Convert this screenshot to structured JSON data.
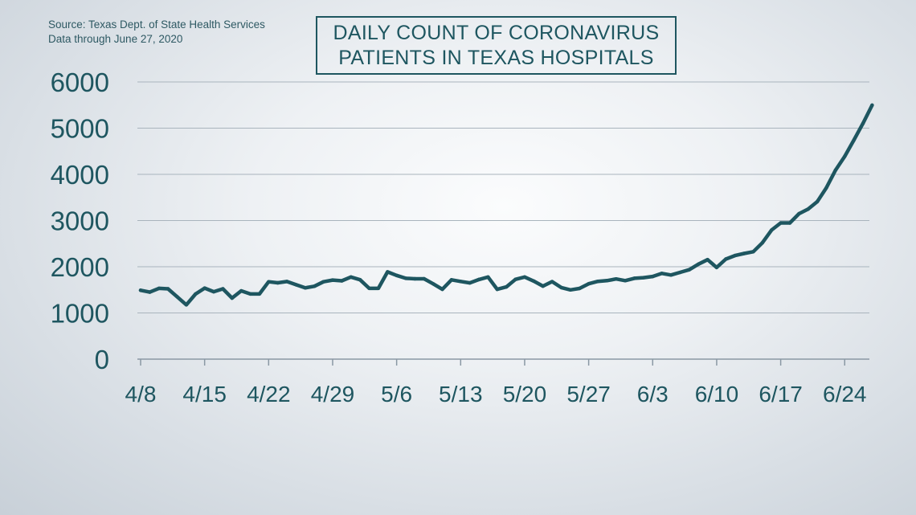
{
  "header": {
    "source_line1": "Source: Texas Dept. of State Health Services",
    "source_line2": "Data through June 27, 2020",
    "title_line1": "DAILY COUNT OF CORONAVIRUS",
    "title_line2": "PATIENTS IN TEXAS HOSPITALS"
  },
  "colors": {
    "line": "#1e5660",
    "grid": "#a9b4bd",
    "text": "#1e5660"
  },
  "chart_data": {
    "type": "line",
    "title": "DAILY COUNT OF CORONAVIRUS PATIENTS IN TEXAS HOSPITALS",
    "xlabel": "",
    "ylabel": "",
    "ylim": [
      0,
      6000
    ],
    "yticks": [
      0,
      1000,
      2000,
      3000,
      4000,
      5000,
      6000
    ],
    "xtick_labels": [
      "4/8",
      "4/15",
      "4/22",
      "4/29",
      "5/6",
      "5/13",
      "5/20",
      "5/27",
      "6/3",
      "6/10",
      "6/17",
      "6/24"
    ],
    "grid": true,
    "legend": "none",
    "series": [
      {
        "x": [
          "4/8",
          "4/9",
          "4/10",
          "4/11",
          "4/12",
          "4/13",
          "4/14",
          "4/15",
          "4/16",
          "4/17",
          "4/18",
          "4/19",
          "4/20",
          "4/21",
          "4/22",
          "4/23",
          "4/24",
          "4/25",
          "4/26",
          "4/27",
          "4/28",
          "4/29",
          "4/30",
          "5/1",
          "5/2",
          "5/3",
          "5/4",
          "5/5",
          "5/6",
          "5/7",
          "5/8",
          "5/9",
          "5/10",
          "5/11",
          "5/12",
          "5/13",
          "5/14",
          "5/15",
          "5/16",
          "5/17",
          "5/18",
          "5/19",
          "5/20",
          "5/21",
          "5/22",
          "5/23",
          "5/24",
          "5/25",
          "5/26",
          "5/27",
          "5/28",
          "5/29",
          "5/30",
          "5/31",
          "6/1",
          "6/2",
          "6/3",
          "6/4",
          "6/5",
          "6/6",
          "6/7",
          "6/8",
          "6/9",
          "6/10",
          "6/11",
          "6/12",
          "6/13",
          "6/14",
          "6/15",
          "6/16",
          "6/17",
          "6/18",
          "6/19",
          "6/20",
          "6/21",
          "6/22",
          "6/23",
          "6/24",
          "6/25",
          "6/26",
          "6/27"
        ],
        "values": [
          1490,
          1450,
          1532,
          1522,
          1350,
          1176,
          1409,
          1538,
          1459,
          1522,
          1321,
          1478,
          1411,
          1411,
          1674,
          1652,
          1680,
          1610,
          1542,
          1578,
          1674,
          1711,
          1695,
          1778,
          1718,
          1533,
          1533,
          1888,
          1812,
          1750,
          1739,
          1739,
          1630,
          1512,
          1716,
          1682,
          1650,
          1724,
          1778,
          1512,
          1563,
          1727,
          1778,
          1689,
          1580,
          1678,
          1550,
          1500,
          1531,
          1631,
          1683,
          1700,
          1735,
          1700,
          1750,
          1764,
          1789,
          1856,
          1821,
          1878,
          1935,
          2056,
          2153,
          1985,
          2166,
          2242,
          2287,
          2326,
          2518,
          2793,
          2947,
          2947,
          3148,
          3247,
          3409,
          3711,
          4092,
          4389,
          4739,
          5102,
          5497
        ]
      }
    ]
  }
}
